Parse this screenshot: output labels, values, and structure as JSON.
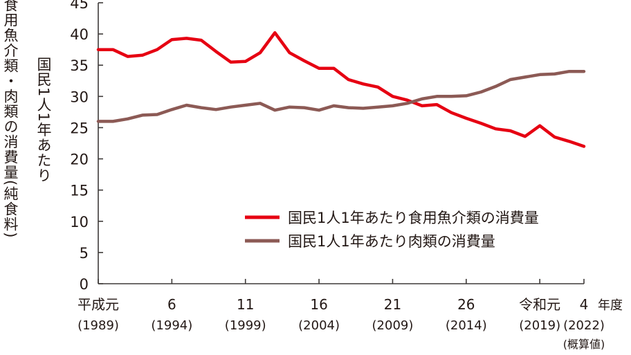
{
  "chart_data": {
    "type": "line",
    "ylabel": "食用魚介類・肉類の消費量(純食料)",
    "ylabel_sub": "国民1人1年あたり",
    "xlabel": "年度",
    "ylim": [
      0,
      45
    ],
    "yticks": [
      0,
      5,
      10,
      15,
      20,
      25,
      30,
      35,
      40,
      45
    ],
    "grid": false,
    "legend_position": "bottom-right",
    "x": [
      1989,
      1990,
      1991,
      1992,
      1993,
      1994,
      1995,
      1996,
      1997,
      1998,
      1999,
      2000,
      2001,
      2002,
      2003,
      2004,
      2005,
      2006,
      2007,
      2008,
      2009,
      2010,
      2011,
      2012,
      2013,
      2014,
      2015,
      2016,
      2017,
      2018,
      2019,
      2020,
      2021,
      2022
    ],
    "xticks": [
      {
        "x": 1989,
        "label": "平成元",
        "sub": "(1989)"
      },
      {
        "x": 1994,
        "label": "6",
        "sub": "(1994)"
      },
      {
        "x": 1999,
        "label": "11",
        "sub": "(1999)"
      },
      {
        "x": 2004,
        "label": "16",
        "sub": "(2004)"
      },
      {
        "x": 2009,
        "label": "21",
        "sub": "(2009)"
      },
      {
        "x": 2014,
        "label": "26",
        "sub": "(2014)"
      },
      {
        "x": 2019,
        "label": "令和元",
        "sub": "(2019)"
      },
      {
        "x": 2022,
        "label": "4",
        "sub": "(2022)",
        "note": "(概算値)"
      }
    ],
    "series": [
      {
        "name": "国民1人1年あたり食用魚介類の消費量",
        "color": "#e60012",
        "values": [
          37.5,
          37.5,
          36.4,
          36.6,
          37.5,
          39.1,
          39.3,
          39.0,
          37.2,
          35.5,
          35.6,
          37.0,
          40.2,
          37.0,
          35.7,
          34.5,
          34.5,
          32.7,
          32.0,
          31.5,
          30.0,
          29.4,
          28.5,
          28.7,
          27.4,
          26.5,
          25.7,
          24.8,
          24.5,
          23.6,
          25.3,
          23.5,
          22.8,
          22.0
        ]
      },
      {
        "name": "国民1人1年あたり肉類の消費量",
        "color": "#8c5a55",
        "values": [
          26.0,
          26.0,
          26.4,
          27.0,
          27.1,
          27.9,
          28.6,
          28.2,
          27.9,
          28.3,
          28.6,
          28.9,
          27.8,
          28.3,
          28.2,
          27.8,
          28.5,
          28.2,
          28.1,
          28.3,
          28.5,
          28.9,
          29.6,
          30.0,
          30.0,
          30.1,
          30.7,
          31.6,
          32.7,
          33.1,
          33.5,
          33.6,
          34.0,
          34.0
        ]
      }
    ]
  }
}
